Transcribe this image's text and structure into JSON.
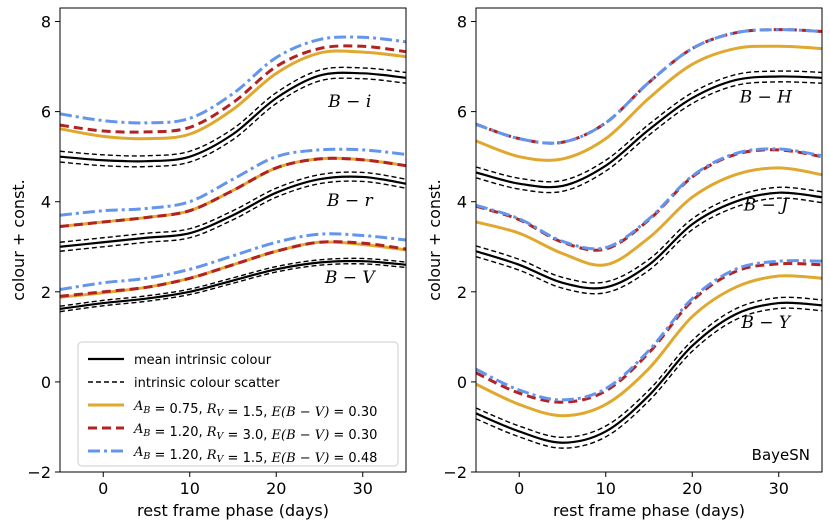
{
  "chart_data": [
    {
      "type": "line",
      "panel": "left",
      "xlabel": "rest frame phase (days)",
      "ylabel": "colour + const.",
      "xlim": [
        -5,
        35
      ],
      "ylim": [
        -2,
        8.3
      ],
      "xticks": [
        0,
        10,
        20,
        30
      ],
      "xtick_labels": [
        "0",
        "10",
        "20",
        "30"
      ],
      "yticks": [
        -2,
        0,
        2,
        4,
        6,
        8
      ],
      "ytick_labels": [
        "−2",
        "0",
        "2",
        "4",
        "6",
        "8"
      ],
      "x": [
        -5,
        0,
        5,
        10,
        15,
        20,
        25,
        30,
        35
      ],
      "band_labels": [
        {
          "text": "B − i",
          "x": 28.5,
          "y": 6.1
        },
        {
          "text": "B − r",
          "x": 28.5,
          "y": 3.9
        },
        {
          "text": "B − V",
          "x": 28.5,
          "y": 2.2
        }
      ],
      "groups": [
        {
          "band": "B − i",
          "mean": [
            5.0,
            4.92,
            4.9,
            5.0,
            5.5,
            6.3,
            6.8,
            6.85,
            6.75
          ],
          "scatter": 0.12,
          "dust": [
            [
              5.62,
              5.45,
              5.4,
              5.5,
              6.05,
              6.85,
              7.3,
              7.32,
              7.22
            ],
            [
              5.7,
              5.57,
              5.55,
              5.65,
              6.2,
              7.0,
              7.4,
              7.45,
              7.33
            ],
            [
              5.95,
              5.8,
              5.75,
              5.85,
              6.4,
              7.2,
              7.6,
              7.65,
              7.55
            ]
          ]
        },
        {
          "band": "B − r",
          "mean": [
            3.0,
            3.1,
            3.2,
            3.3,
            3.7,
            4.2,
            4.5,
            4.55,
            4.4
          ],
          "scatter": 0.1,
          "dust": [
            [
              3.45,
              3.55,
              3.65,
              3.8,
              4.25,
              4.75,
              4.95,
              4.93,
              4.8
            ],
            [
              3.45,
              3.55,
              3.65,
              3.8,
              4.25,
              4.75,
              4.95,
              4.93,
              4.8
            ],
            [
              3.7,
              3.8,
              3.85,
              4.0,
              4.5,
              5.0,
              5.15,
              5.15,
              5.05
            ]
          ]
        },
        {
          "band": "B − V",
          "mean": [
            1.62,
            1.75,
            1.85,
            2.0,
            2.25,
            2.5,
            2.65,
            2.68,
            2.6
          ],
          "scatter": 0.06,
          "dust": [
            [
              1.88,
              1.98,
              2.1,
              2.3,
              2.6,
              2.9,
              3.1,
              3.05,
              2.93
            ],
            [
              1.9,
              2.0,
              2.1,
              2.3,
              2.6,
              2.9,
              3.1,
              3.08,
              2.95
            ],
            [
              2.05,
              2.2,
              2.3,
              2.5,
              2.8,
              3.1,
              3.28,
              3.25,
              3.15
            ]
          ]
        }
      ]
    },
    {
      "type": "line",
      "panel": "right",
      "xlabel": "rest frame phase (days)",
      "ylabel": "colour + const.",
      "xlim": [
        -5,
        35
      ],
      "ylim": [
        -2,
        8.3
      ],
      "xticks": [
        0,
        10,
        20,
        30
      ],
      "xtick_labels": [
        "0",
        "10",
        "20",
        "30"
      ],
      "yticks": [
        -2,
        0,
        2,
        4,
        6,
        8
      ],
      "ytick_labels": [
        "−2",
        "0",
        "2",
        "4",
        "6",
        "8"
      ],
      "x": [
        -5,
        0,
        5,
        10,
        15,
        20,
        25,
        30,
        35
      ],
      "annotation": "BayeSN",
      "band_labels": [
        {
          "text": "B − H",
          "x": 28.5,
          "y": 6.2
        },
        {
          "text": "B − J",
          "x": 28.5,
          "y": 3.8
        },
        {
          "text": "B − Y",
          "x": 28.5,
          "y": 1.2
        }
      ],
      "groups": [
        {
          "band": "B − H",
          "mean": [
            4.65,
            4.4,
            4.35,
            4.8,
            5.6,
            6.3,
            6.7,
            6.78,
            6.75
          ],
          "scatter": 0.12,
          "dust": [
            [
              5.35,
              5.0,
              4.95,
              5.4,
              6.3,
              7.05,
              7.4,
              7.45,
              7.4
            ],
            [
              5.72,
              5.4,
              5.32,
              5.75,
              6.65,
              7.4,
              7.75,
              7.82,
              7.78
            ],
            [
              5.72,
              5.4,
              5.32,
              5.75,
              6.65,
              7.4,
              7.75,
              7.82,
              7.78
            ]
          ]
        },
        {
          "band": "B − J",
          "mean": [
            2.9,
            2.6,
            2.2,
            2.1,
            2.6,
            3.5,
            4.0,
            4.2,
            4.1
          ],
          "scatter": 0.12,
          "dust": [
            [
              3.55,
              3.3,
              2.85,
              2.6,
              3.2,
              4.1,
              4.6,
              4.75,
              4.6
            ],
            [
              3.9,
              3.6,
              3.1,
              2.95,
              3.6,
              4.55,
              5.05,
              5.15,
              5.0
            ],
            [
              3.92,
              3.62,
              3.12,
              2.98,
              3.62,
              4.57,
              5.07,
              5.17,
              5.02
            ]
          ]
        },
        {
          "band": "B − Y",
          "mean": [
            -0.7,
            -1.1,
            -1.35,
            -1.1,
            -0.3,
            0.8,
            1.5,
            1.75,
            1.7
          ],
          "scatter": 0.12,
          "dust": [
            [
              -0.05,
              -0.5,
              -0.75,
              -0.5,
              0.3,
              1.45,
              2.1,
              2.35,
              2.3
            ],
            [
              0.2,
              -0.25,
              -0.45,
              -0.2,
              0.65,
              1.8,
              2.45,
              2.62,
              2.6
            ],
            [
              0.28,
              -0.18,
              -0.4,
              -0.15,
              0.7,
              1.85,
              2.5,
              2.68,
              2.68
            ]
          ]
        }
      ]
    }
  ],
  "legend": [
    {
      "label": "mean intrinsic colour",
      "style": "mean"
    },
    {
      "label": "intrinsic colour scatter",
      "style": "scatter"
    },
    {
      "label": "A_B = 0.75, R_V = 1.5, E(B − V) = 0.30",
      "style": "dust0"
    },
    {
      "label": "A_B = 1.20, R_V = 3.0, E(B − V) = 0.30",
      "style": "dust1"
    },
    {
      "label": "A_B = 1.20, R_V = 1.5, E(B − V) = 0.48",
      "style": "dust2"
    }
  ],
  "styles": {
    "mean": {
      "color": "#000000",
      "dash": ""
    },
    "scatter": {
      "color": "#000000",
      "dash": "5,3"
    },
    "dust0": {
      "color": "#e0a82e",
      "dash": ""
    },
    "dust1": {
      "color": "#b22222",
      "dash": "9,5"
    },
    "dust2": {
      "color": "#6495ed",
      "dash": "12,4,3,4"
    }
  }
}
